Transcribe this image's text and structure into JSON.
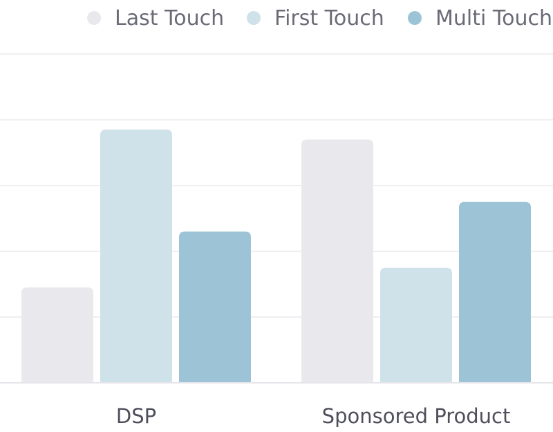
{
  "chart_data": {
    "type": "bar",
    "title": "",
    "xlabel": "",
    "ylabel": "",
    "categories": [
      "DSP",
      "Sponsored Product"
    ],
    "series": [
      {
        "name": "Last Touch",
        "values": [
          29,
          74
        ],
        "color": "#e9e8ec"
      },
      {
        "name": "First Touch",
        "values": [
          77,
          35
        ],
        "color": "#cfe2ea"
      },
      {
        "name": "Multi Touch",
        "values": [
          46,
          55
        ],
        "color": "#9dc4d6"
      }
    ],
    "ylim": [
      0,
      100
    ],
    "grid": true,
    "legend": "top-right",
    "gridline_color": "#efeff2",
    "baseline_color": "#e6e6ea"
  }
}
